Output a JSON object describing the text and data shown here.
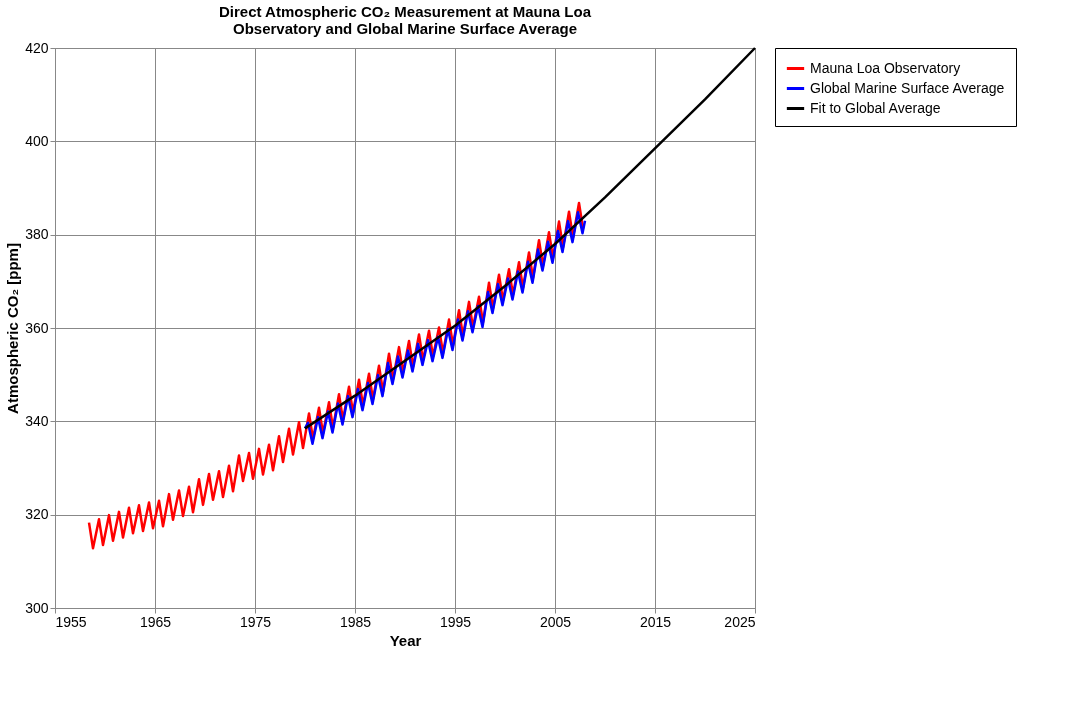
{
  "chart_data": {
    "type": "line",
    "title": "Direct Atmospheric CO₂ Measurement at Mauna Loa Observatory and Global Marine Surface Average",
    "xlabel": "Year",
    "ylabel": "Atmospheric CO₂ [ppm]",
    "xlim": [
      1955,
      2025
    ],
    "xticks": [
      1955,
      1965,
      1975,
      1985,
      1995,
      2005,
      2015,
      2025
    ],
    "ylim": [
      300,
      420
    ],
    "yticks": [
      300,
      320,
      340,
      360,
      380,
      400,
      420
    ],
    "grid": true,
    "legend": "right",
    "marker": "none",
    "line_style": "solid",
    "series": [
      {
        "name": "Mauna Loa Observatory",
        "color": "#ff0000",
        "x": [
          1958.4,
          1958.8,
          1959.4,
          1959.8,
          1960.4,
          1960.8,
          1961.4,
          1961.8,
          1962.4,
          1962.8,
          1963.4,
          1963.8,
          1964.4,
          1964.8,
          1965.4,
          1965.8,
          1966.4,
          1966.8,
          1967.4,
          1967.8,
          1968.4,
          1968.8,
          1969.4,
          1969.8,
          1970.4,
          1970.8,
          1971.4,
          1971.8,
          1972.4,
          1972.8,
          1973.4,
          1973.8,
          1974.4,
          1974.8,
          1975.4,
          1975.8,
          1976.4,
          1976.8,
          1977.4,
          1977.8,
          1978.4,
          1978.8,
          1979.4,
          1979.8,
          1980.4,
          1980.8,
          1981.4,
          1981.8,
          1982.4,
          1982.8,
          1983.4,
          1983.8,
          1984.4,
          1984.8,
          1985.4,
          1985.8,
          1986.4,
          1986.8,
          1987.4,
          1987.8,
          1988.4,
          1988.8,
          1989.4,
          1989.8,
          1990.4,
          1990.8,
          1991.4,
          1991.8,
          1992.4,
          1992.8,
          1993.4,
          1993.8,
          1994.4,
          1994.8,
          1995.4,
          1995.8,
          1996.4,
          1996.8,
          1997.4,
          1997.8,
          1998.4,
          1998.8,
          1999.4,
          1999.8,
          2000.4,
          2000.8,
          2001.4,
          2001.8,
          2002.4,
          2002.8,
          2003.4,
          2003.8,
          2004.4,
          2004.8,
          2005.4,
          2005.8,
          2006.4,
          2006.8,
          2007.4,
          2007.8
        ],
        "values": [
          318.3,
          312.8,
          319.0,
          313.5,
          319.9,
          314.4,
          320.6,
          315.1,
          321.5,
          316.0,
          322.0,
          316.5,
          322.6,
          317.1,
          323.0,
          317.5,
          324.4,
          318.9,
          325.2,
          319.7,
          326.0,
          320.5,
          327.6,
          322.1,
          328.7,
          323.2,
          329.3,
          323.8,
          330.5,
          325.0,
          332.7,
          327.2,
          333.2,
          327.7,
          334.1,
          328.6,
          335.0,
          329.5,
          336.8,
          331.3,
          338.4,
          332.9,
          339.8,
          334.3,
          341.7,
          336.2,
          342.9,
          337.4,
          344.1,
          338.6,
          345.8,
          340.3,
          347.4,
          341.9,
          348.9,
          343.4,
          350.2,
          344.7,
          351.9,
          346.4,
          354.5,
          349.0,
          355.9,
          350.4,
          357.2,
          351.7,
          358.6,
          353.1,
          359.4,
          353.9,
          360.1,
          354.6,
          361.8,
          356.3,
          363.8,
          358.3,
          365.6,
          360.1,
          366.7,
          361.2,
          369.7,
          364.2,
          371.4,
          365.9,
          372.6,
          367.1,
          374.1,
          368.6,
          376.2,
          370.7,
          378.8,
          373.3,
          380.5,
          375.0,
          382.8,
          377.3,
          384.9,
          379.4,
          386.8,
          381.3
        ]
      },
      {
        "name": "Global Marine Surface Average",
        "color": "#0000ff",
        "x": [
          1980.0,
          1980.3,
          1980.75,
          1981.3,
          1981.75,
          1982.3,
          1982.75,
          1983.3,
          1983.75,
          1984.3,
          1984.75,
          1985.3,
          1985.75,
          1986.3,
          1986.75,
          1987.3,
          1987.75,
          1988.3,
          1988.75,
          1989.3,
          1989.75,
          1990.3,
          1990.75,
          1991.3,
          1991.75,
          1992.3,
          1992.75,
          1993.3,
          1993.75,
          1994.3,
          1994.75,
          1995.3,
          1995.75,
          1996.3,
          1996.75,
          1997.3,
          1997.75,
          1998.3,
          1998.75,
          1999.3,
          1999.75,
          2000.3,
          2000.75,
          2001.3,
          2001.75,
          2002.3,
          2002.75,
          2003.3,
          2003.75,
          2004.3,
          2004.75,
          2005.3,
          2005.75,
          2006.3,
          2006.75,
          2007.3,
          2007.75,
          2008.0
        ],
        "values": [
          338.5,
          339.7,
          335.2,
          340.9,
          336.4,
          342.1,
          337.6,
          343.8,
          339.3,
          345.4,
          340.9,
          346.9,
          342.4,
          348.2,
          343.7,
          349.9,
          345.4,
          352.5,
          348.0,
          353.9,
          349.4,
          355.2,
          350.7,
          356.6,
          352.1,
          357.4,
          352.9,
          358.1,
          353.6,
          359.8,
          355.3,
          361.8,
          357.3,
          363.6,
          359.1,
          364.7,
          360.2,
          367.7,
          363.2,
          369.4,
          364.9,
          370.6,
          366.1,
          372.1,
          367.6,
          374.2,
          369.7,
          376.8,
          372.3,
          378.5,
          374.0,
          380.8,
          376.3,
          382.9,
          378.4,
          384.8,
          380.3,
          383.0
        ]
      },
      {
        "name": "Fit to Global Average",
        "color": "#000000",
        "x": [
          1980,
          1985,
          1990,
          1995,
          2000,
          2005,
          2010,
          2015,
          2020,
          2025
        ],
        "values": [
          338.5,
          345.5,
          353.0,
          360.5,
          369.0,
          378.0,
          388.0,
          398.5,
          409.0,
          420.0
        ]
      }
    ]
  }
}
